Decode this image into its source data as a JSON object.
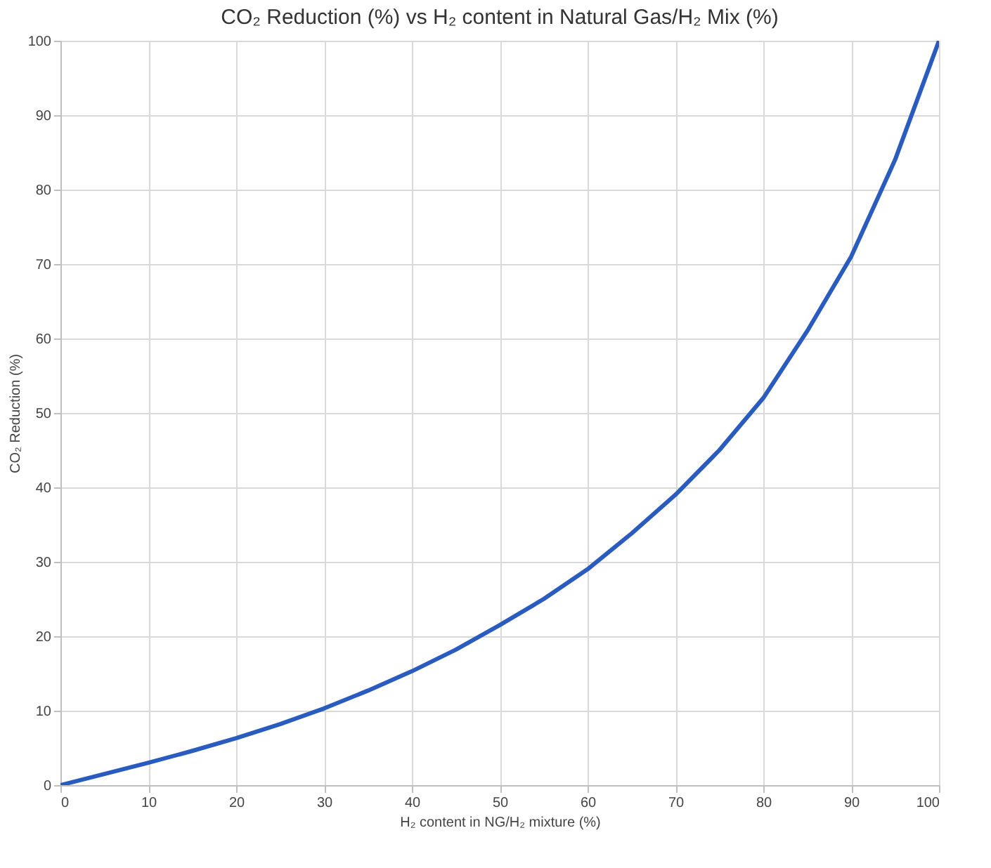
{
  "chart_data": {
    "type": "line",
    "title": "CO₂ Reduction (%) vs H₂ content in Natural Gas/H₂ Mix (%)",
    "xlabel": "H₂ content in NG/H₂ mixture (%)",
    "ylabel": "CO₂ Reduction (%)",
    "x": [
      0,
      5,
      10,
      15,
      20,
      25,
      30,
      35,
      40,
      45,
      50,
      55,
      60,
      65,
      70,
      75,
      80,
      85,
      90,
      95,
      100
    ],
    "series": [
      {
        "color": "#2a5cbf",
        "values": [
          0,
          1.5,
          3,
          4.6,
          6.3,
          8.2,
          10.3,
          12.7,
          15.3,
          18.2,
          21.5,
          25,
          29,
          33.8,
          39,
          45,
          52,
          61,
          71,
          84,
          100
        ]
      }
    ],
    "xlim": [
      0,
      100
    ],
    "ylim": [
      0,
      100
    ],
    "xticks": [
      0,
      10,
      20,
      30,
      40,
      50,
      60,
      70,
      80,
      90,
      100
    ],
    "yticks": [
      0,
      10,
      20,
      30,
      40,
      50,
      60,
      70,
      80,
      90,
      100
    ],
    "grid": true,
    "marker": "none",
    "line_style": "solid"
  }
}
